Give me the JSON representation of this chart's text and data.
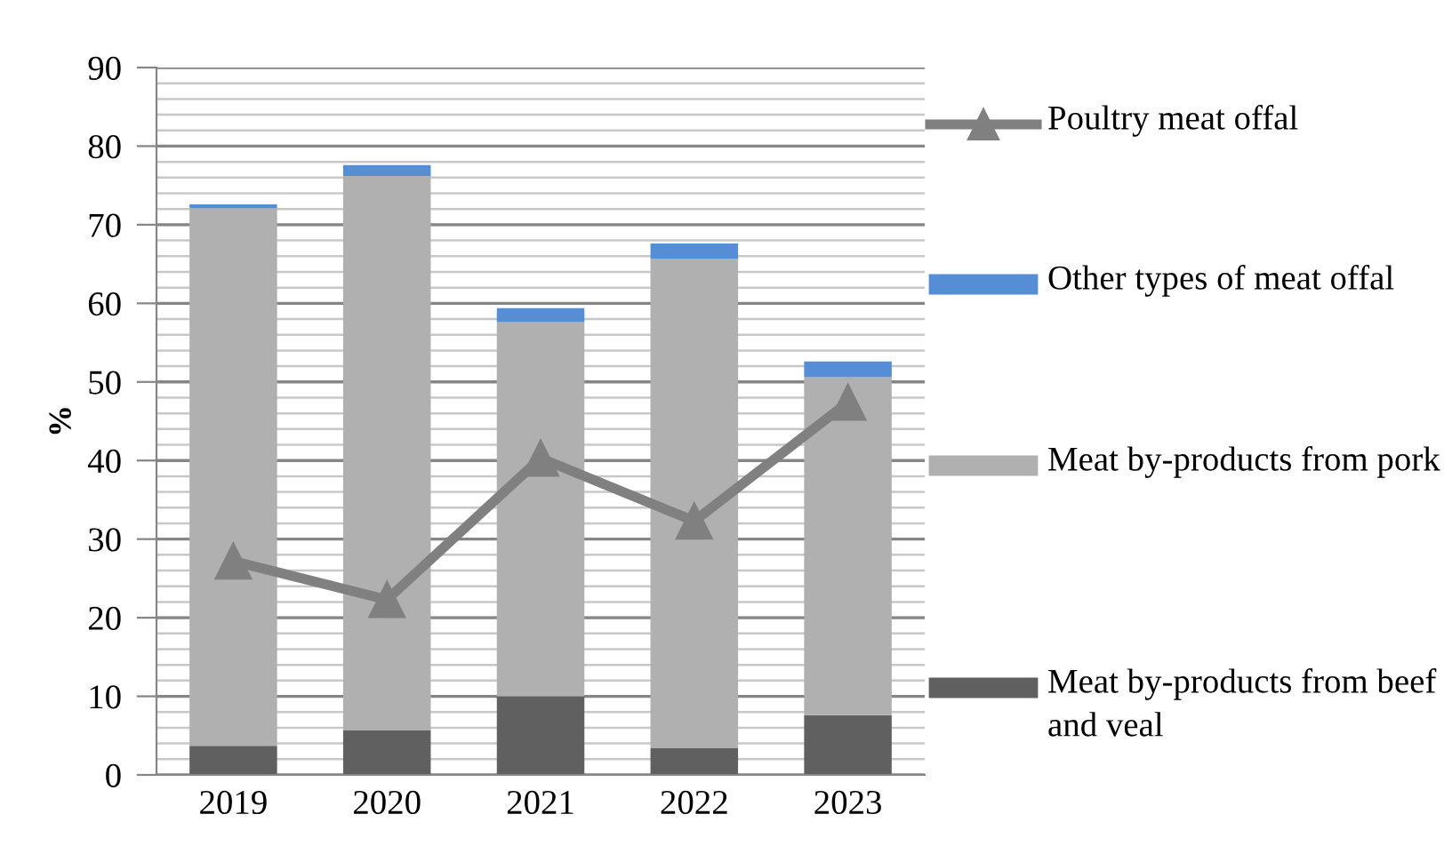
{
  "chart_data": {
    "type": "bar",
    "stacked": true,
    "ylabel": "%",
    "categories": [
      "2019",
      "2020",
      "2021",
      "2022",
      "2023"
    ],
    "series": [
      {
        "name": "Meat by-products from beef and veal",
        "color": "#606060",
        "values": [
          3.7,
          5.7,
          10.0,
          3.4,
          7.6
        ]
      },
      {
        "name": "Meat by-products from pork",
        "color": "#b0b0b0",
        "values": [
          68.4,
          70.5,
          47.6,
          62.3,
          43.0
        ]
      },
      {
        "name": "Other types of meat offal",
        "color": "#558ed5",
        "values": [
          0.5,
          1.4,
          1.8,
          1.9,
          2.0
        ]
      },
      {
        "name": "Poultry meat offal",
        "type": "line",
        "color": "#808080",
        "marker": "triangle",
        "values": [
          27.2,
          22.3,
          40.3,
          32.3,
          47.4
        ]
      }
    ],
    "ylim": [
      0,
      90
    ],
    "yticks": [
      0,
      10,
      20,
      30,
      40,
      50,
      60,
      70,
      80,
      90
    ],
    "grid": "y",
    "legend": "right"
  }
}
